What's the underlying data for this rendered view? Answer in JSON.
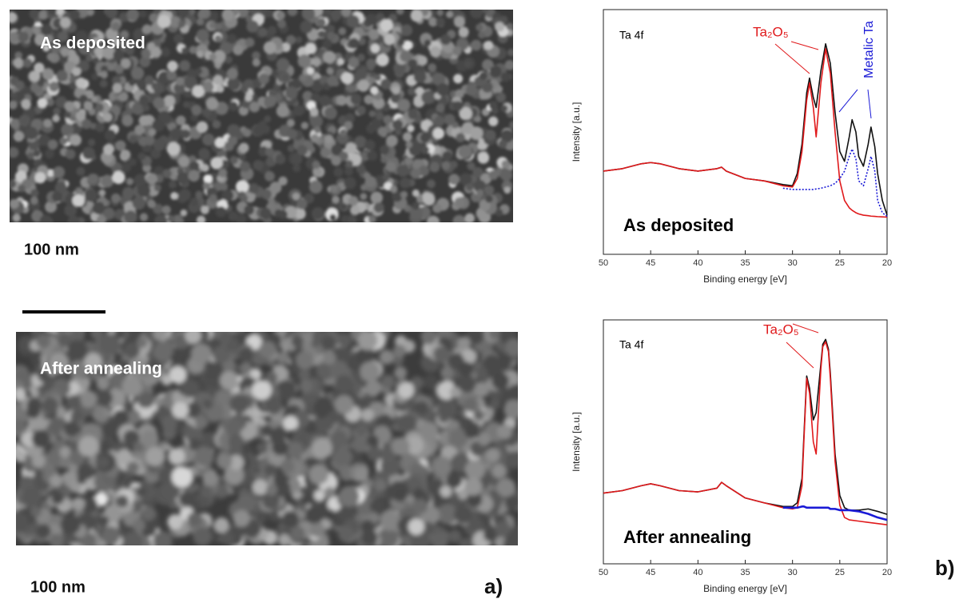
{
  "images": [
    {
      "label": "As deposited",
      "scale": "100 nm"
    },
    {
      "label": "After annealing",
      "scale": "100 nm"
    }
  ],
  "panel_labels": [
    "a)",
    "b)"
  ],
  "chart_data": [
    {
      "type": "line",
      "x_label": "Binding energy [eV]",
      "y_label": "Intensity [a.u.]",
      "annotations": {
        "core_level": "Ta 4f",
        "oxide": "Ta₂O₅",
        "metal": "Metalic Ta",
        "condition": "As deposited"
      },
      "x": [
        50,
        48,
        46,
        45,
        44,
        42,
        40,
        38,
        37.5,
        37,
        35,
        33,
        31,
        30,
        29.5,
        29,
        28.5,
        28.2,
        27.8,
        27.5,
        27,
        26.5,
        26,
        25.5,
        25,
        24.5,
        24,
        23.7,
        23.3,
        23,
        22.5,
        22,
        21.7,
        21.3,
        21,
        20.5,
        20
      ],
      "series": [
        {
          "color": "#111111",
          "style": "solid",
          "values": [
            34,
            35,
            37,
            37.5,
            37,
            35,
            34,
            35,
            35.6,
            34,
            31,
            30,
            28.5,
            28,
            33,
            45,
            66,
            72,
            64,
            60,
            75,
            86,
            78,
            58,
            42,
            38,
            48,
            55,
            50,
            40,
            36,
            45,
            52,
            44,
            33,
            22,
            16
          ]
        },
        {
          "color": "#e0191b",
          "style": "solid",
          "values": [
            34,
            35,
            37,
            37.5,
            37,
            35,
            34,
            35,
            35.6,
            34,
            31,
            30,
            28,
            27.5,
            31,
            42,
            63,
            70,
            60,
            48,
            70,
            84,
            74,
            50,
            30,
            22,
            19,
            18,
            17,
            16.5,
            16,
            15.8,
            15.6,
            15.5,
            15.4,
            15.3,
            15.2
          ]
        },
        {
          "color": "#1a1ad6",
          "style": "dotted",
          "values": [
            null,
            null,
            null,
            null,
            null,
            null,
            null,
            null,
            null,
            null,
            null,
            null,
            27,
            26.5,
            26.5,
            26.5,
            26.5,
            26.5,
            26.5,
            26.7,
            27,
            27.5,
            28,
            29,
            31,
            34,
            40,
            43,
            39,
            30,
            28,
            35,
            40,
            34,
            22,
            17,
            15.5
          ]
        }
      ],
      "xlim": [
        50,
        20
      ],
      "ylim": [
        0,
        100
      ],
      "xticks": [
        50,
        45,
        40,
        35,
        30,
        25,
        20
      ]
    },
    {
      "type": "line",
      "x_label": "Binding energy [eV]",
      "y_label": "Intensity [a.u.]",
      "annotations": {
        "core_level": "Ta 4f",
        "oxide": "Ta₂O₅",
        "condition": "After annealing"
      },
      "x": [
        50,
        48,
        46,
        45,
        44,
        42,
        40,
        38,
        37.5,
        37,
        35,
        33,
        31,
        30,
        29.5,
        29,
        28.8,
        28.5,
        28.2,
        27.8,
        27.5,
        27,
        26.8,
        26.5,
        26.2,
        26,
        25.5,
        25,
        24.5,
        24,
        23,
        22,
        21,
        20
      ],
      "series": [
        {
          "color": "#111111",
          "style": "solid",
          "values": [
            29,
            30,
            32,
            32.8,
            32,
            30,
            29.5,
            31,
            33.4,
            32,
            27,
            25,
            23.5,
            23.5,
            25,
            35,
            52,
            77,
            72,
            59,
            62,
            82,
            90,
            92,
            88,
            78,
            45,
            28,
            23,
            22,
            22,
            22.5,
            21.5,
            20.3
          ]
        },
        {
          "color": "#e0191b",
          "style": "solid",
          "values": [
            29,
            30,
            32,
            32.8,
            32,
            30,
            29.5,
            31,
            33.4,
            32,
            27,
            25,
            23,
            22.5,
            23,
            32,
            50,
            76,
            70,
            50,
            45,
            80,
            89,
            91,
            87,
            76,
            42,
            24,
            19,
            18,
            17.5,
            17,
            16.5,
            16
          ]
        },
        {
          "color": "#1a1ad6",
          "style": "thick",
          "values": [
            null,
            null,
            null,
            null,
            null,
            null,
            null,
            null,
            null,
            null,
            null,
            null,
            23,
            23,
            23,
            23.5,
            23.5,
            23,
            23,
            23,
            23,
            23,
            23,
            23,
            23,
            22.5,
            22.5,
            22,
            22,
            22,
            21.5,
            20.5,
            19,
            18
          ]
        }
      ],
      "xlim": [
        50,
        20
      ],
      "ylim": [
        0,
        100
      ],
      "xticks": [
        50,
        45,
        40,
        35,
        30,
        25,
        20
      ]
    }
  ]
}
